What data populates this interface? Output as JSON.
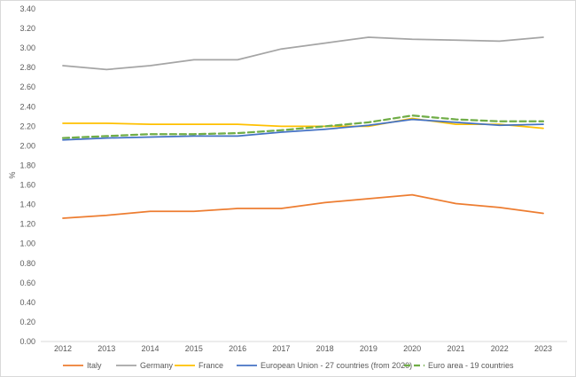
{
  "chart_data": {
    "type": "line",
    "title": "",
    "xlabel": "",
    "ylabel": "%",
    "x": [
      "2012",
      "2013",
      "2014",
      "2015",
      "2016",
      "2017",
      "2018",
      "2019",
      "2020",
      "2021",
      "2022",
      "2023"
    ],
    "ylim": [
      0,
      3.4
    ],
    "yticks": [
      "0.00",
      "0.20",
      "0.40",
      "0.60",
      "0.80",
      "1.00",
      "1.20",
      "1.40",
      "1.60",
      "1.80",
      "2.00",
      "2.20",
      "2.40",
      "2.60",
      "2.80",
      "3.00",
      "3.20",
      "3.40"
    ],
    "grid": false,
    "legend_position": "bottom",
    "series": [
      {
        "name": "Italy",
        "color": "#ed7d31",
        "dash": "solid",
        "values": [
          1.26,
          1.29,
          1.33,
          1.33,
          1.36,
          1.36,
          1.42,
          1.46,
          1.5,
          1.41,
          1.37,
          1.31
        ]
      },
      {
        "name": "Germany",
        "color": "#a5a5a5",
        "dash": "solid",
        "values": [
          2.82,
          2.78,
          2.82,
          2.88,
          2.88,
          2.99,
          3.05,
          3.11,
          3.09,
          3.08,
          3.07,
          3.11
        ]
      },
      {
        "name": "France",
        "color": "#ffc000",
        "dash": "solid",
        "values": [
          2.23,
          2.23,
          2.22,
          2.22,
          2.22,
          2.2,
          2.2,
          2.2,
          2.28,
          2.22,
          2.22,
          2.18
        ]
      },
      {
        "name": "European Union - 27 countries (from 2020)",
        "color": "#4472c4",
        "dash": "solid",
        "values": [
          2.06,
          2.08,
          2.09,
          2.1,
          2.1,
          2.14,
          2.17,
          2.21,
          2.27,
          2.24,
          2.21,
          2.22
        ]
      },
      {
        "name": "Euro area - 19 countries",
        "color": "#70ad47",
        "dash": "dashed",
        "values": [
          2.08,
          2.1,
          2.12,
          2.12,
          2.13,
          2.16,
          2.2,
          2.24,
          2.31,
          2.27,
          2.25,
          2.25
        ]
      }
    ]
  }
}
